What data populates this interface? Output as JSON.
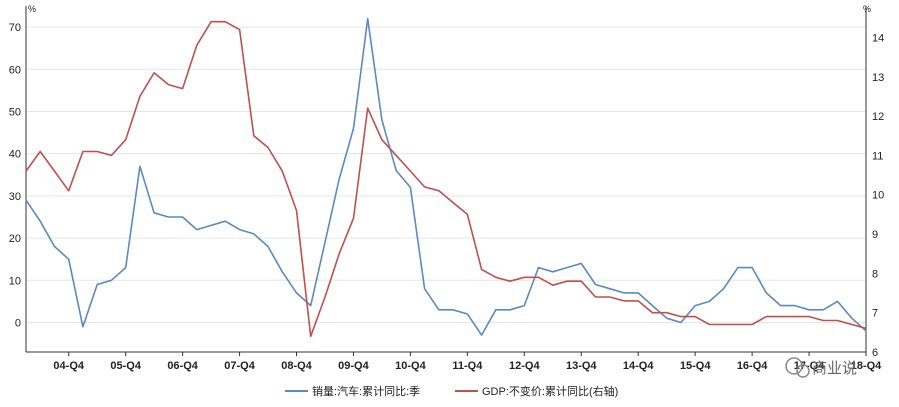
{
  "chart_data": {
    "type": "line",
    "x": [
      "04-Q1",
      "04-Q2",
      "04-Q3",
      "04-Q4",
      "05-Q1",
      "05-Q2",
      "05-Q3",
      "05-Q4",
      "06-Q1",
      "06-Q2",
      "06-Q3",
      "06-Q4",
      "07-Q1",
      "07-Q2",
      "07-Q3",
      "07-Q4",
      "08-Q1",
      "08-Q2",
      "08-Q3",
      "08-Q4",
      "09-Q1",
      "09-Q2",
      "09-Q3",
      "09-Q4",
      "10-Q1",
      "10-Q2",
      "10-Q3",
      "10-Q4",
      "11-Q1",
      "11-Q2",
      "11-Q3",
      "11-Q4",
      "12-Q1",
      "12-Q2",
      "12-Q3",
      "12-Q4",
      "13-Q1",
      "13-Q2",
      "13-Q3",
      "13-Q4",
      "14-Q1",
      "14-Q2",
      "14-Q3",
      "14-Q4",
      "15-Q1",
      "15-Q2",
      "15-Q3",
      "15-Q4",
      "16-Q1",
      "16-Q2",
      "16-Q3",
      "16-Q4",
      "17-Q1",
      "17-Q2",
      "17-Q3",
      "17-Q4",
      "18-Q1",
      "18-Q2",
      "18-Q3",
      "18-Q4"
    ],
    "x_tick_labels": [
      "04-Q4",
      "05-Q4",
      "06-Q4",
      "07-Q4",
      "08-Q4",
      "09-Q4",
      "10-Q4",
      "11-Q4",
      "12-Q4",
      "13-Q4",
      "14-Q4",
      "15-Q4",
      "16-Q4",
      "17-Q4",
      "18-Q4"
    ],
    "x_tick_indices": [
      3,
      7,
      11,
      15,
      19,
      23,
      27,
      31,
      35,
      39,
      43,
      47,
      51,
      55,
      59
    ],
    "series": [
      {
        "name": "销量:汽车:累计同比:季",
        "axis": "left",
        "color": "#5b8ac0",
        "values": [
          29,
          24,
          18,
          15,
          -1,
          9,
          10,
          13,
          37,
          26,
          25,
          25,
          22,
          23,
          24,
          22,
          21,
          18,
          12,
          7,
          4,
          19,
          34,
          46,
          72,
          48,
          36,
          32,
          8,
          3,
          3,
          2,
          -3,
          3,
          3,
          4,
          13,
          12,
          13,
          14,
          9,
          8,
          7,
          7,
          4,
          1,
          0,
          4,
          5,
          8,
          13,
          13,
          7,
          4,
          4,
          3,
          3,
          5,
          1,
          -2
        ]
      },
      {
        "name": "GDP:不变价:累计同比(右轴)",
        "axis": "right",
        "color": "#c0504d",
        "values": [
          10.6,
          11.1,
          10.6,
          10.1,
          11.1,
          11.1,
          11.0,
          11.4,
          12.5,
          13.1,
          12.8,
          12.7,
          13.8,
          14.4,
          14.4,
          14.2,
          11.5,
          11.2,
          10.6,
          9.6,
          6.4,
          7.4,
          8.5,
          9.4,
          12.2,
          11.4,
          11.0,
          10.6,
          10.2,
          10.1,
          9.8,
          9.5,
          8.1,
          7.9,
          7.8,
          7.9,
          7.9,
          7.7,
          7.8,
          7.8,
          7.4,
          7.4,
          7.3,
          7.3,
          7.0,
          7.0,
          6.9,
          6.9,
          6.7,
          6.7,
          6.7,
          6.7,
          6.9,
          6.9,
          6.9,
          6.9,
          6.8,
          6.8,
          6.7,
          6.6
        ]
      }
    ],
    "y_left": {
      "unit": "%",
      "ylim": [
        -7,
        75
      ],
      "ticks": [
        0,
        10,
        20,
        30,
        40,
        50,
        60,
        70
      ]
    },
    "y_right": {
      "unit": "%",
      "ylim": [
        6.0,
        14.8
      ],
      "ticks": [
        6,
        7,
        8,
        9,
        10,
        11,
        12,
        13,
        14
      ]
    },
    "grid": "horizontal",
    "legend_position": "bottom",
    "watermark": "商业说"
  }
}
